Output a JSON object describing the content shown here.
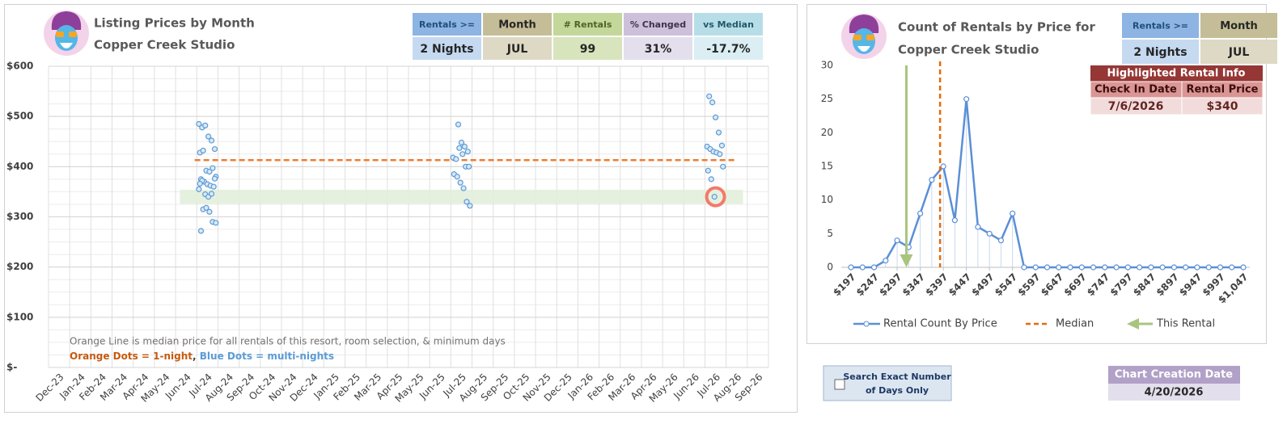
{
  "left_header": {
    "title": "Listing Prices by Month",
    "subtitle": "Copper Creek Studio"
  },
  "left_stats": [
    {
      "label": "Rentals >=",
      "value": "2 Nights",
      "header_color": "#8db4e2",
      "value_color": "#c5d9f1",
      "text_color": "#1f4e79"
    },
    {
      "label": "Month",
      "value": "JUL",
      "header_color": "#c4bd97",
      "value_color": "#ddd9c4",
      "text_color": "#262626"
    },
    {
      "label": "# Rentals",
      "value": "99",
      "header_color": "#c4d79b",
      "value_color": "#d8e4bc",
      "text_color": "#4f6228"
    },
    {
      "label": "% Changed",
      "value": "31%",
      "header_color": "#ccc0da",
      "value_color": "#e4dfec",
      "text_color": "#403151"
    },
    {
      "label": "vs Median",
      "value": "-17.7%",
      "header_color": "#b7dee8",
      "value_color": "#daeef3",
      "text_color": "#215967"
    }
  ],
  "right_header": {
    "title": "Count of Rentals by Price for",
    "subtitle": "Copper Creek Studio"
  },
  "right_stats": [
    {
      "label": "Rentals >=",
      "value": "2 Nights",
      "header_color": "#8db4e2",
      "value_color": "#c5d9f1",
      "text_color": "#1f4e79"
    },
    {
      "label": "Month",
      "value": "JUL",
      "header_color": "#c4bd97",
      "value_color": "#ddd9c4",
      "text_color": "#262626"
    }
  ],
  "highlighted_rental": {
    "title": "Highlighted Rental Info",
    "headers": [
      "Check In Date",
      "Rental Price"
    ],
    "row": [
      "7/6/2026",
      "$340"
    ]
  },
  "exact_days_checkbox": {
    "label_lines": [
      "Search Exact Number",
      "of Days Only"
    ]
  },
  "creation_date": {
    "label": "Chart Creation Date",
    "value": "4/20/2026"
  },
  "chart_data": [
    {
      "type": "scatter",
      "categories": [
        "Dec-23",
        "Jan-24",
        "Feb-24",
        "Mar-24",
        "Apr-24",
        "May-24",
        "Jun-24",
        "Jul-24",
        "Aug-24",
        "Sep-24",
        "Oct-24",
        "Nov-24",
        "Dec-24",
        "Jan-25",
        "Feb-25",
        "Mar-25",
        "Apr-25",
        "May-25",
        "Jun-25",
        "Jul-25",
        "Aug-25",
        "Sep-25",
        "Oct-25",
        "Nov-25",
        "Dec-25",
        "Jan-26",
        "Feb-26",
        "Mar-26",
        "Apr-26",
        "May-26",
        "Jun-26",
        "Jul-26",
        "Aug-26",
        "Sep-26"
      ],
      "ylim": [
        0,
        600
      ],
      "yticks": [
        {
          "value": 0,
          "label": "$-"
        },
        {
          "value": 100,
          "label": "$100"
        },
        {
          "value": 200,
          "label": "$200"
        },
        {
          "value": 300,
          "label": "$300"
        },
        {
          "value": 400,
          "label": "$400"
        },
        {
          "value": 500,
          "label": "$500"
        },
        {
          "value": 600,
          "label": "$600"
        }
      ],
      "grid": true,
      "series": [
        {
          "color": "#5b9bd5",
          "x": [
            "Jul-24",
            "Jul-24",
            "Jul-24",
            "Jul-24",
            "Jul-24",
            "Jul-24",
            "Jul-24",
            "Jul-24",
            "Jul-24",
            "Jul-24",
            "Jul-24",
            "Jul-24",
            "Jul-24",
            "Jul-24",
            "Jul-24",
            "Jul-24",
            "Jul-24",
            "Jul-24",
            "Jul-24",
            "Jul-24",
            "Jul-24",
            "Jul-24",
            "Jul-24",
            "Jul-24",
            "Jul-24",
            "Jul-24",
            "Jul-24",
            "Jul-24",
            "Jul-24",
            "Jul-24",
            "Jul-25",
            "Jul-25",
            "Jul-25",
            "Jul-25",
            "Jul-25",
            "Jul-25",
            "Jul-25",
            "Jul-25",
            "Jul-25",
            "Jul-25",
            "Jul-25",
            "Jul-25",
            "Jul-25",
            "Jul-25",
            "Jul-25",
            "Jul-25",
            "Jul-26",
            "Jul-26",
            "Jul-26",
            "Jul-26",
            "Jul-26",
            "Jul-26",
            "Jul-26",
            "Jul-26",
            "Jul-26",
            "Jul-26",
            "Jul-26",
            "Jul-26",
            "Jul-26",
            "Jul-26"
          ],
          "values": [
            485,
            478,
            482,
            460,
            452,
            435,
            428,
            432,
            392,
            390,
            397,
            380,
            375,
            370,
            365,
            362,
            360,
            355,
            372,
            345,
            340,
            346,
            376,
            366,
            315,
            318,
            310,
            290,
            288,
            272,
            484,
            448,
            440,
            430,
            418,
            415,
            437,
            425,
            400,
            400,
            385,
            380,
            368,
            357,
            330,
            322,
            540,
            528,
            498,
            468,
            442,
            440,
            435,
            430,
            428,
            425,
            400,
            392,
            375,
            340
          ]
        }
      ],
      "median": {
        "value": 413,
        "color": "#ed7d31"
      },
      "highlight_band": {
        "values": [
          326,
          354
        ],
        "color": "#e2efda"
      },
      "highlight": {
        "x": "Jul-26",
        "value": 340,
        "color": "#f4796b"
      },
      "note": "Orange Line is median price for all rentals of this resort, room selection, & minimum days",
      "legend_note": [
        {
          "text": "Orange Dots = 1-night",
          "color": "#c55a11"
        },
        {
          "text": ", ",
          "color": "#404040"
        },
        {
          "text": "Blue Dots = multi-nights",
          "color": "#5b9bd5"
        }
      ]
    },
    {
      "type": "line",
      "x": [
        197,
        222,
        247,
        272,
        297,
        322,
        347,
        372,
        397,
        422,
        447,
        472,
        497,
        522,
        547,
        572,
        597,
        622,
        647,
        672,
        697,
        722,
        747,
        772,
        797,
        822,
        847,
        872,
        897,
        922,
        947,
        972,
        997,
        1022,
        1047
      ],
      "xlim": [
        197,
        1047
      ],
      "xticks": [
        {
          "value": 197,
          "label": "$197"
        },
        {
          "value": 247,
          "label": "$247"
        },
        {
          "value": 297,
          "label": "$297"
        },
        {
          "value": 347,
          "label": "$347"
        },
        {
          "value": 397,
          "label": "$397"
        },
        {
          "value": 447,
          "label": "$447"
        },
        {
          "value": 497,
          "label": "$497"
        },
        {
          "value": 547,
          "label": "$547"
        },
        {
          "value": 597,
          "label": "$597"
        },
        {
          "value": 647,
          "label": "$647"
        },
        {
          "value": 697,
          "label": "$697"
        },
        {
          "value": 747,
          "label": "$747"
        },
        {
          "value": 797,
          "label": "$797"
        },
        {
          "value": 847,
          "label": "$847"
        },
        {
          "value": 897,
          "label": "$897"
        },
        {
          "value": 947,
          "label": "$947"
        },
        {
          "value": 997,
          "label": "$997"
        },
        {
          "value": 1047,
          "label": "$1,047"
        }
      ],
      "ylim": [
        0,
        30
      ],
      "yticks": [
        0,
        5,
        10,
        15,
        20,
        25,
        30
      ],
      "series": [
        {
          "name": "Rental Count By Price",
          "color": "#5b8fd6",
          "values": [
            0,
            0,
            0,
            1,
            4,
            3,
            8,
            13,
            15,
            7,
            25,
            6,
            5,
            4,
            8,
            0,
            0,
            0,
            0,
            0,
            0,
            0,
            0,
            0,
            0,
            0,
            0,
            0,
            0,
            0,
            0,
            0,
            0,
            0,
            0
          ]
        }
      ],
      "median": {
        "name": "Median",
        "value": 390,
        "color": "#e46c0a"
      },
      "this_rental": {
        "name": "This Rental",
        "value": 317,
        "color": "#a9c47f"
      }
    }
  ]
}
